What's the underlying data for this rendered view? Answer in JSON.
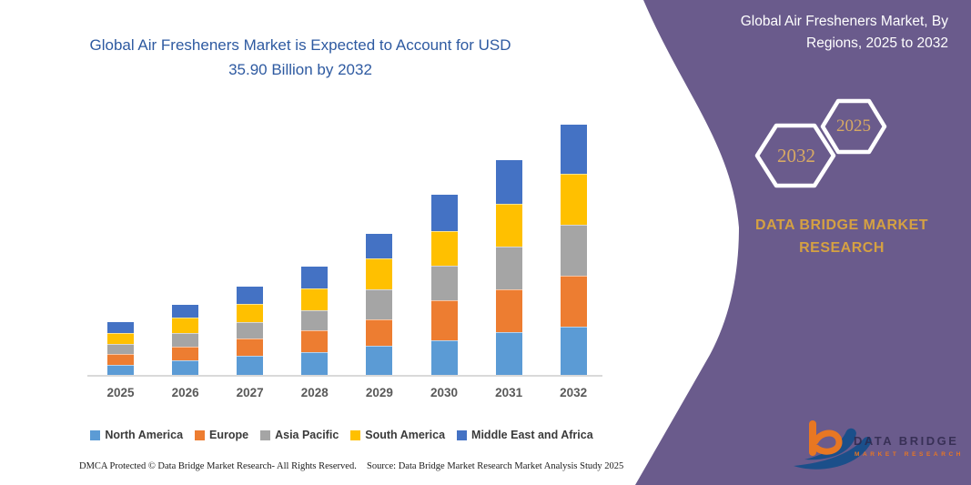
{
  "left_panel": {
    "title_line1": "Global Air Fresheners Market is Expected to Account for USD",
    "title_line2": "35.90 Billion by 2032",
    "footer_left": "DMCA Protected © Data Bridge Market Research-  All Rights Reserved.",
    "footer_source": "Source: Data Bridge Market Research  Market Analysis Study 2025"
  },
  "right_panel": {
    "title_line1": "Global Air Fresheners Market, By",
    "title_line2": "Regions, 2025 to 2032",
    "hexagon_back_year": "2032",
    "hexagon_front_year": "2025",
    "brand_line1": "DATA BRIDGE MARKET",
    "brand_line2": "RESEARCH",
    "logo": {
      "name": "DATA BRIDGE",
      "tagline": "MARKET RESEARCH"
    },
    "colors": {
      "panel": "#6A5B8C",
      "gold": "#D5A142",
      "hex_text": "#D7A964",
      "logo_orange": "#E87722",
      "logo_blue": "#1B4F8A"
    }
  },
  "chart_data": {
    "type": "bar",
    "stacked": true,
    "title": "Global Air Fresheners Market is Expected to Account for USD 35.90 Billion by 2032",
    "unit": "USD Billion",
    "xlabel": "",
    "ylabel": "",
    "grid": false,
    "legend_position": "bottom",
    "categories": [
      "2025",
      "2026",
      "2027",
      "2028",
      "2029",
      "2030",
      "2031",
      "2032"
    ],
    "series": [
      {
        "name": "North America",
        "color": "#5B9BD5",
        "values": [
          1.44,
          2.13,
          2.78,
          3.22,
          4.22,
          5.0,
          6.1,
          6.96
        ]
      },
      {
        "name": "Europe",
        "color": "#ED7D31",
        "values": [
          1.53,
          1.96,
          2.39,
          3.17,
          3.79,
          5.65,
          6.18,
          7.31
        ]
      },
      {
        "name": "Asia Pacific",
        "color": "#A5A5A5",
        "values": [
          1.44,
          1.96,
          2.39,
          2.91,
          4.27,
          5.0,
          6.1,
          7.27
        ]
      },
      {
        "name": "South America",
        "color": "#FFC000",
        "values": [
          1.61,
          2.22,
          2.61,
          3.04,
          4.44,
          5.0,
          6.1,
          7.27
        ]
      },
      {
        "name": "Middle East and Africa",
        "color": "#4472C4",
        "values": [
          1.53,
          1.83,
          2.44,
          3.22,
          3.56,
          5.22,
          6.31,
          7.09
        ]
      }
    ],
    "totals": [
      7.55,
      10.1,
      12.61,
      15.56,
      20.28,
      25.87,
      30.79,
      35.9
    ]
  }
}
